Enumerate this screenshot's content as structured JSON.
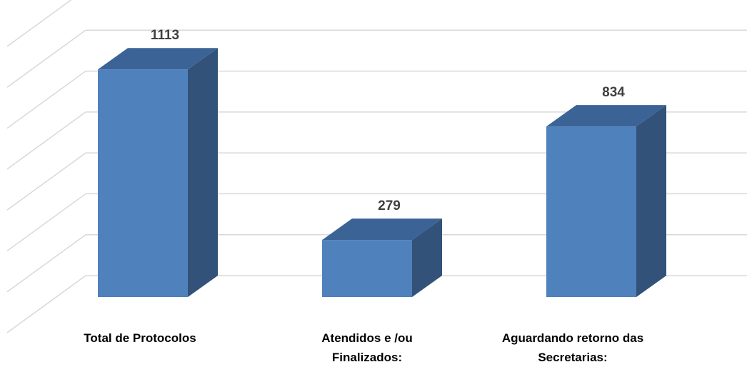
{
  "chart_data": {
    "type": "bar",
    "style": "3d-column",
    "categories": [
      "Total de Protocolos",
      "Atendidos e /ou Finalizados:",
      "Aguardando retorno das Secretarias:"
    ],
    "category_lines": [
      [
        "Total de Protocolos"
      ],
      [
        "Atendidos e /ou",
        "Finalizados:"
      ],
      [
        "Aguardando retorno das",
        "Secretarias:"
      ]
    ],
    "values": [
      1113,
      279,
      834
    ],
    "data_labels": [
      "1113",
      "279",
      "834"
    ],
    "ylim": [
      0,
      1400
    ],
    "grid": true,
    "legend": "none",
    "colors": {
      "front": "#4F81BD",
      "top": "#3B6396",
      "side": "#325279",
      "grid": "#D9D9D9",
      "label": "#404040",
      "category": "#000000"
    }
  }
}
